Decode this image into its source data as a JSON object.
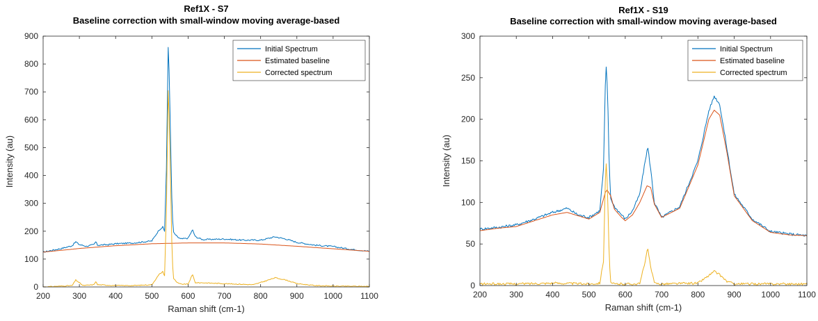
{
  "colors": {
    "initial": "#0072BD",
    "baseline": "#D95319",
    "corrected": "#EDB120",
    "axis": "#262626",
    "grid": "#dddddd"
  },
  "chart_data": [
    {
      "type": "line",
      "title": "Ref1X - S7",
      "subtitle": "Baseline correction with small-window moving average-based",
      "xlabel": "Raman shift (cm-1)",
      "ylabel": "Intensity (au)",
      "xlim": [
        200,
        1100
      ],
      "ylim": [
        0,
        900
      ],
      "xticks": [
        200,
        300,
        400,
        500,
        600,
        700,
        800,
        900,
        1000,
        1100
      ],
      "yticks": [
        0,
        100,
        200,
        300,
        400,
        500,
        600,
        700,
        800,
        900
      ],
      "grid": false,
      "legend_position": "top-right",
      "series": [
        {
          "name": "Initial Spectrum",
          "color": "#0072BD",
          "x": [
            200,
            250,
            280,
            290,
            300,
            320,
            340,
            345,
            350,
            380,
            400,
            450,
            500,
            520,
            530,
            535,
            540,
            545,
            548,
            552,
            556,
            560,
            570,
            580,
            600,
            612,
            620,
            640,
            700,
            750,
            800,
            840,
            870,
            900,
            950,
            1000,
            1050,
            1100
          ],
          "y": [
            125,
            138,
            148,
            162,
            152,
            146,
            152,
            162,
            150,
            152,
            155,
            158,
            165,
            205,
            215,
            200,
            420,
            860,
            760,
            500,
            260,
            195,
            180,
            172,
            175,
            205,
            180,
            170,
            172,
            168,
            168,
            180,
            172,
            160,
            150,
            145,
            135,
            128
          ]
        },
        {
          "name": "Estimated baseline",
          "color": "#D95319",
          "x": [
            200,
            300,
            400,
            500,
            600,
            700,
            800,
            900,
            1000,
            1100
          ],
          "y": [
            125,
            138,
            148,
            155,
            158,
            158,
            154,
            146,
            137,
            128
          ]
        },
        {
          "name": "Corrected spectrum",
          "color": "#EDB120",
          "x": [
            200,
            280,
            290,
            300,
            310,
            340,
            345,
            350,
            400,
            450,
            500,
            520,
            530,
            535,
            540,
            545,
            548,
            552,
            556,
            560,
            570,
            580,
            600,
            612,
            620,
            640,
            700,
            780,
            810,
            840,
            870,
            900,
            950,
            1000,
            1100
          ],
          "y": [
            0,
            5,
            25,
            15,
            5,
            8,
            20,
            8,
            5,
            5,
            8,
            45,
            55,
            40,
            270,
            705,
            600,
            350,
            100,
            30,
            15,
            10,
            10,
            45,
            15,
            15,
            12,
            8,
            20,
            33,
            25,
            12,
            5,
            3,
            2
          ]
        }
      ]
    },
    {
      "type": "line",
      "title": "Ref1X - S19",
      "subtitle": "Baseline correction with small-window moving average-based",
      "xlabel": "Raman shift (cm-1)",
      "ylabel": "Intensity (au)",
      "xlim": [
        200,
        1100
      ],
      "ylim": [
        0,
        300
      ],
      "xticks": [
        200,
        300,
        400,
        500,
        600,
        700,
        800,
        900,
        1000,
        1100
      ],
      "yticks": [
        0,
        50,
        100,
        150,
        200,
        250,
        300
      ],
      "grid": false,
      "legend_position": "top-right",
      "series": [
        {
          "name": "Initial Spectrum",
          "color": "#0072BD",
          "x": [
            200,
            250,
            300,
            350,
            400,
            440,
            470,
            500,
            530,
            540,
            545,
            548,
            552,
            556,
            560,
            570,
            590,
            600,
            620,
            640,
            655,
            662,
            670,
            680,
            700,
            750,
            800,
            830,
            845,
            860,
            880,
            900,
            950,
            1000,
            1050,
            1100
          ],
          "y": [
            68,
            70,
            73,
            80,
            88,
            93,
            85,
            82,
            90,
            140,
            240,
            266,
            220,
            140,
            105,
            95,
            85,
            80,
            90,
            110,
            150,
            167,
            140,
            100,
            82,
            95,
            150,
            210,
            228,
            218,
            165,
            110,
            80,
            65,
            62,
            60
          ],
          "noise": true
        },
        {
          "name": "Estimated baseline",
          "color": "#D95319",
          "x": [
            200,
            250,
            300,
            350,
            400,
            440,
            470,
            500,
            530,
            545,
            550,
            560,
            570,
            590,
            600,
            620,
            640,
            660,
            670,
            680,
            700,
            750,
            800,
            830,
            845,
            860,
            880,
            900,
            950,
            1000,
            1050,
            1100
          ],
          "y": [
            66,
            69,
            71,
            78,
            85,
            88,
            84,
            80,
            88,
            112,
            115,
            108,
            92,
            82,
            78,
            85,
            100,
            120,
            118,
            98,
            82,
            93,
            145,
            200,
            211,
            205,
            160,
            108,
            78,
            64,
            61,
            60
          ]
        },
        {
          "name": "Corrected spectrum",
          "color": "#EDB120",
          "x": [
            200,
            300,
            400,
            500,
            530,
            540,
            545,
            548,
            552,
            556,
            560,
            570,
            600,
            640,
            655,
            662,
            670,
            680,
            700,
            800,
            830,
            845,
            860,
            880,
            900,
            1000,
            1100
          ],
          "y": [
            2,
            2,
            3,
            2,
            3,
            30,
            125,
            152,
            100,
            30,
            3,
            2,
            2,
            2,
            30,
            45,
            22,
            3,
            2,
            3,
            12,
            17,
            13,
            5,
            2,
            2,
            2
          ],
          "noise": true
        }
      ]
    }
  ]
}
